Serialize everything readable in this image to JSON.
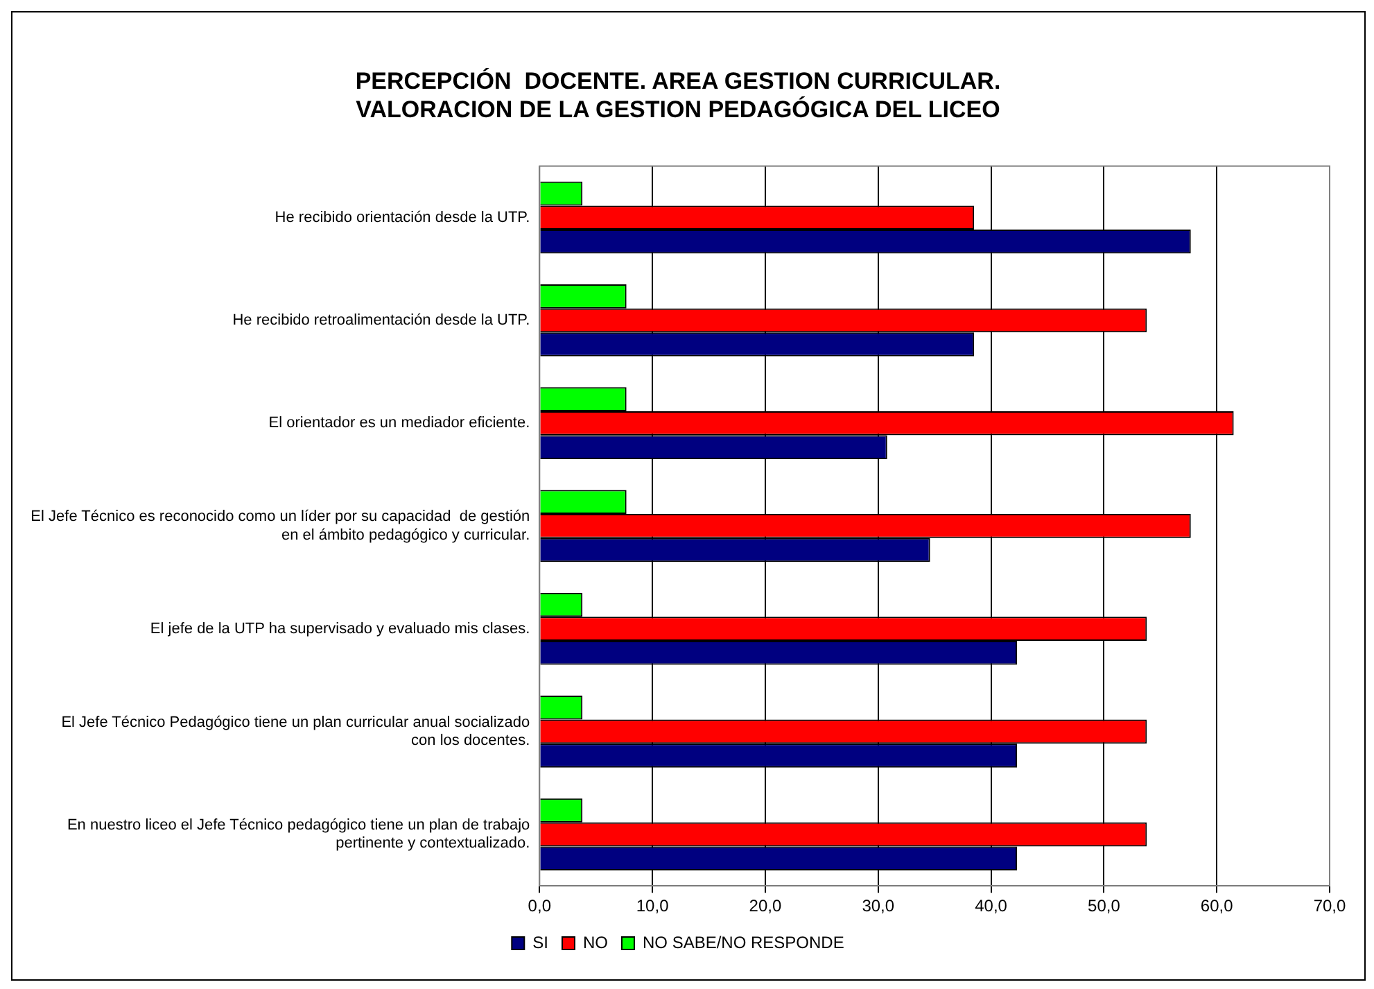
{
  "chart_data": {
    "type": "bar",
    "orientation": "horizontal",
    "title": "PERCEPCIÓN  DOCENTE. AREA GESTION CURRICULAR.\nVALORACION DE LA GESTION PEDAGÓGICA DEL LICEO",
    "categories": [
      "He recibido orientación desde la UTP.",
      "He recibido retroalimentación desde la UTP.",
      "El orientador es un mediador eficiente.",
      "El Jefe Técnico es reconocido como un líder por su capacidad  de gestión en el ámbito pedagógico y curricular.",
      "El jefe de la UTP ha supervisado y evaluado mis clases.",
      "El Jefe Técnico Pedagógico tiene un plan curricular anual socializado con los docentes.",
      "En nuestro liceo el Jefe Técnico pedagógico tiene un plan de trabajo pertinente y contextualizado."
    ],
    "series": [
      {
        "name": "SI",
        "color": "#000080",
        "values": [
          57.7,
          38.5,
          30.8,
          34.6,
          42.3,
          42.3,
          42.3
        ]
      },
      {
        "name": "NO",
        "color": "#ff0000",
        "values": [
          38.5,
          53.8,
          61.5,
          57.7,
          53.8,
          53.8,
          53.8
        ]
      },
      {
        "name": "NO SABE/NO RESPONDE",
        "color": "#00ff00",
        "values": [
          3.8,
          7.7,
          7.7,
          7.7,
          3.8,
          3.8,
          3.8
        ]
      }
    ],
    "xlim": [
      0,
      70
    ],
    "xticks": [
      {
        "value": 0,
        "label": "0,0"
      },
      {
        "value": 10,
        "label": "10,0"
      },
      {
        "value": 20,
        "label": "20,0"
      },
      {
        "value": 30,
        "label": "30,0"
      },
      {
        "value": 40,
        "label": "40,0"
      },
      {
        "value": 50,
        "label": "50,0"
      },
      {
        "value": 60,
        "label": "60,0"
      },
      {
        "value": 70,
        "label": "70,0"
      }
    ],
    "grid": "x",
    "legend": "bottom"
  }
}
